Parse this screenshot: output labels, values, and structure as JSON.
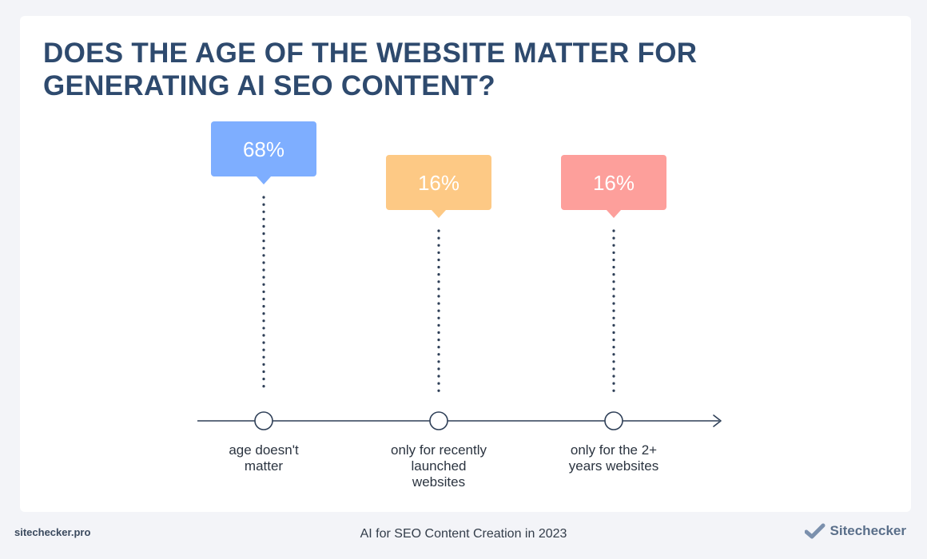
{
  "title": "DOES THE AGE OF THE WEBSITE MATTER FOR GENERATING AI SEO CONTENT?",
  "footer": {
    "site": "sitechecker.pro",
    "caption": "AI for SEO Content Creation in 2023",
    "brand": "Sitechecker"
  },
  "colors": {
    "axis": "#2e3f57",
    "dots": "#2e3f57",
    "callouts": [
      "#7eaeff",
      "#fdc985",
      "#fd9f9b"
    ],
    "title": "#2e4a6e",
    "brand": "#7b90ad"
  },
  "icons": [
    "checkmark-icon"
  ],
  "chart_data": {
    "type": "bar",
    "title": "DOES THE AGE OF THE WEBSITE MATTER FOR GENERATING AI SEO CONTENT?",
    "categories": [
      "age doesn't matter",
      "only for recently launched websites",
      "only for the 2+ years websites"
    ],
    "values": [
      68,
      16,
      16
    ],
    "value_labels": [
      "68%",
      "16%",
      "16%"
    ],
    "category_lines": [
      [
        "age doesn't",
        "matter"
      ],
      [
        "only for recently",
        "launched",
        "websites"
      ],
      [
        "only for the 2+",
        "years websites"
      ]
    ],
    "unit": "%"
  }
}
